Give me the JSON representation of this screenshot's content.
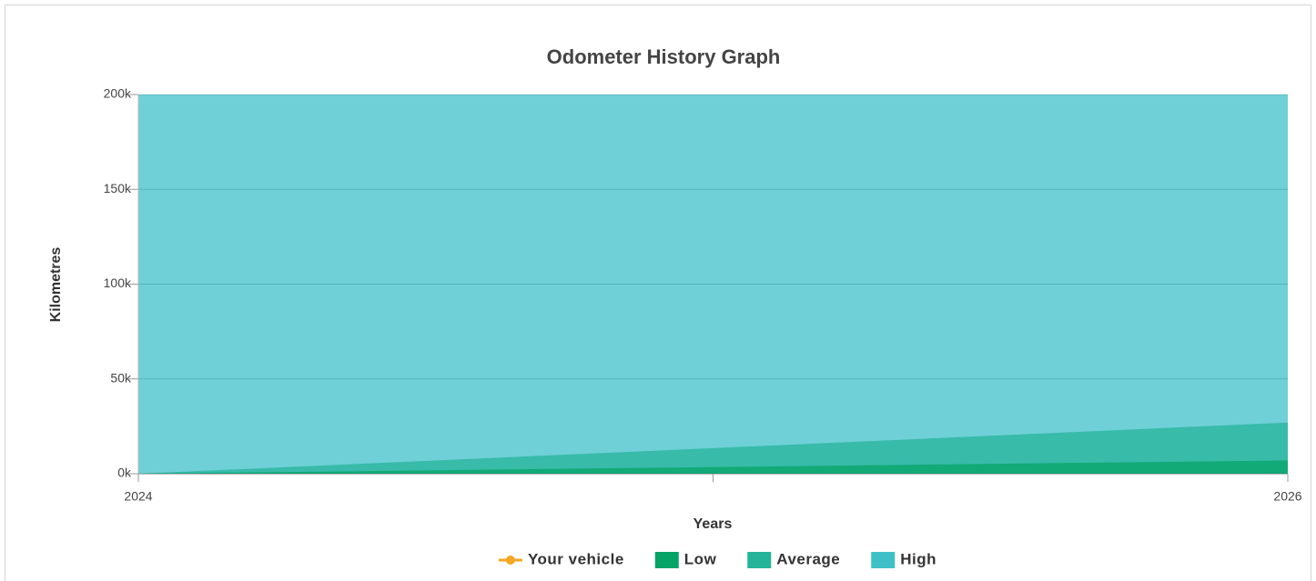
{
  "chart_data": {
    "type": "area",
    "title": "Odometer History Graph",
    "x_label": "Years",
    "y_label": "Kilometres",
    "categories": [
      "2024",
      null,
      "2026"
    ],
    "series": [
      {
        "name": "Your vehicle",
        "color": "#f5a623",
        "kind": "line",
        "values": [
          null,
          null,
          null
        ]
      },
      {
        "name": "Low",
        "color": "#05a466",
        "values": [
          0,
          3500,
          7000
        ]
      },
      {
        "name": "Average",
        "color": "#25b49a",
        "values": [
          0,
          13500,
          27000
        ]
      },
      {
        "name": "High",
        "color": "#3fc0c9",
        "values": [
          200000,
          200000,
          200000
        ]
      }
    ],
    "ylim": [
      0,
      200000
    ],
    "yticks": [
      {
        "value": 0,
        "label": "0k"
      },
      {
        "value": 50000,
        "label": "50k"
      },
      {
        "value": 100000,
        "label": "100k"
      },
      {
        "value": 150000,
        "label": "150k"
      },
      {
        "value": 200000,
        "label": "200k"
      }
    ],
    "grid": true,
    "legend": "bottom"
  }
}
